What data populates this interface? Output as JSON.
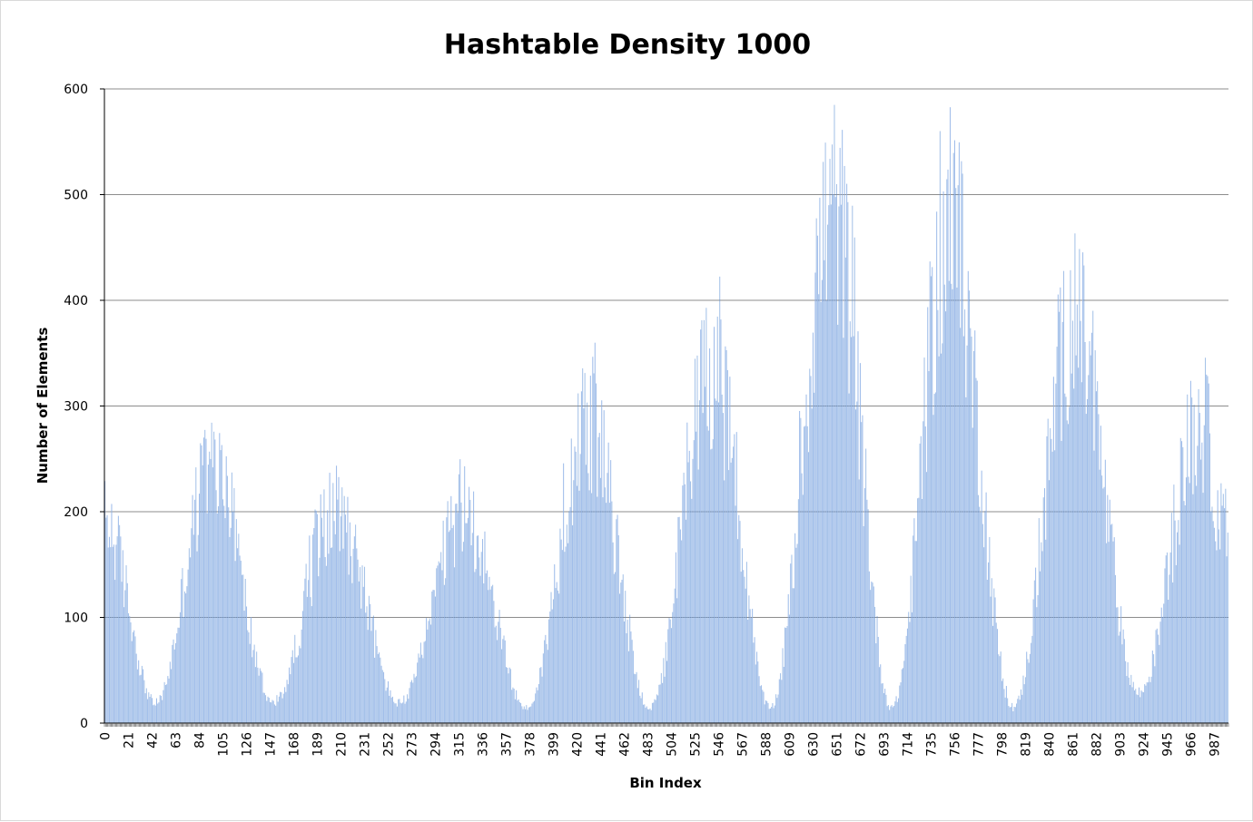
{
  "chart_data": {
    "type": "bar",
    "title": "Hashtable Density 1000",
    "xlabel": "Bin Index",
    "ylabel": "Number of Elements",
    "ylim": [
      0,
      600
    ],
    "yticks": [
      0,
      100,
      200,
      300,
      400,
      500,
      600
    ],
    "x_tick_labels": [
      "0",
      "21",
      "42",
      "63",
      "84",
      "105",
      "126",
      "147",
      "168",
      "189",
      "210",
      "231",
      "252",
      "273",
      "294",
      "315",
      "336",
      "357",
      "378",
      "399",
      "420",
      "441",
      "462",
      "483",
      "504",
      "525",
      "546",
      "567",
      "588",
      "609",
      "630",
      "651",
      "672",
      "693",
      "714",
      "735",
      "756",
      "777",
      "798",
      "819",
      "840",
      "861",
      "882",
      "903",
      "924",
      "945",
      "966",
      "987"
    ],
    "x_range": [
      0,
      999
    ],
    "bin_count": 1000,
    "grid": "horizontal",
    "legend": "none",
    "colors": {
      "bar": "#8fb2e6",
      "bar_dark": "#5b8fd6",
      "gridline": "#8c8c8c",
      "axis": "#000000"
    },
    "envelope_note_free": [],
    "peaks": [
      {
        "center": 0,
        "height": 200
      },
      {
        "center": 95,
        "height": 255
      },
      {
        "center": 205,
        "height": 215
      },
      {
        "center": 320,
        "height": 210
      },
      {
        "center": 430,
        "height": 300
      },
      {
        "center": 540,
        "height": 355
      },
      {
        "center": 648,
        "height": 515
      },
      {
        "center": 752,
        "height": 490
      },
      {
        "center": 862,
        "height": 400
      },
      {
        "center": 975,
        "height": 300
      }
    ],
    "troughs": [
      {
        "center": 45,
        "height": 20
      },
      {
        "center": 150,
        "height": 20
      },
      {
        "center": 262,
        "height": 20
      },
      {
        "center": 375,
        "height": 15
      },
      {
        "center": 485,
        "height": 15
      },
      {
        "center": 592,
        "height": 15
      },
      {
        "center": 700,
        "height": 15
      },
      {
        "center": 808,
        "height": 15
      },
      {
        "center": 920,
        "height": 30
      }
    ]
  }
}
